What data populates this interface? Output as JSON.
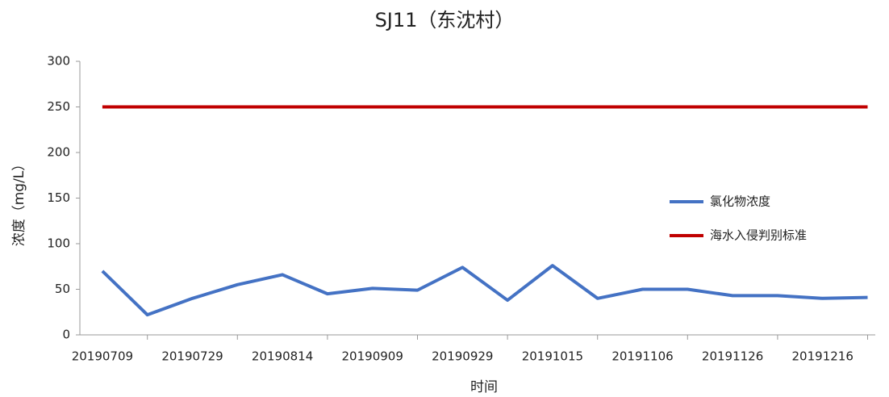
{
  "chart_data": {
    "type": "line",
    "title": "SJ11（东沈村）",
    "x_label": "时间",
    "y_label": "浓度（mg/L）",
    "categories": [
      "20190709",
      null,
      "20190729",
      null,
      "20190814",
      null,
      "20190909",
      null,
      "20190929",
      null,
      "20191015",
      null,
      "20191106",
      null,
      "20191126",
      null,
      "20191216",
      null
    ],
    "series": [
      {
        "name": "氯化物浓度",
        "color": "#4472c4",
        "values": [
          70,
          22,
          40,
          55,
          66,
          45,
          51,
          49,
          74,
          38,
          76,
          40,
          50,
          50,
          43,
          43,
          40,
          41
        ]
      },
      {
        "name": "海水入侵判别标准",
        "color": "#c00000",
        "values": [
          250,
          250,
          250,
          250,
          250,
          250,
          250,
          250,
          250,
          250,
          250,
          250,
          250,
          250,
          250,
          250,
          250,
          250
        ]
      }
    ],
    "ylim": [
      0,
      300
    ],
    "yticks": [
      0,
      50,
      100,
      150,
      200,
      250,
      300
    ],
    "grid": false,
    "legend": "right"
  }
}
